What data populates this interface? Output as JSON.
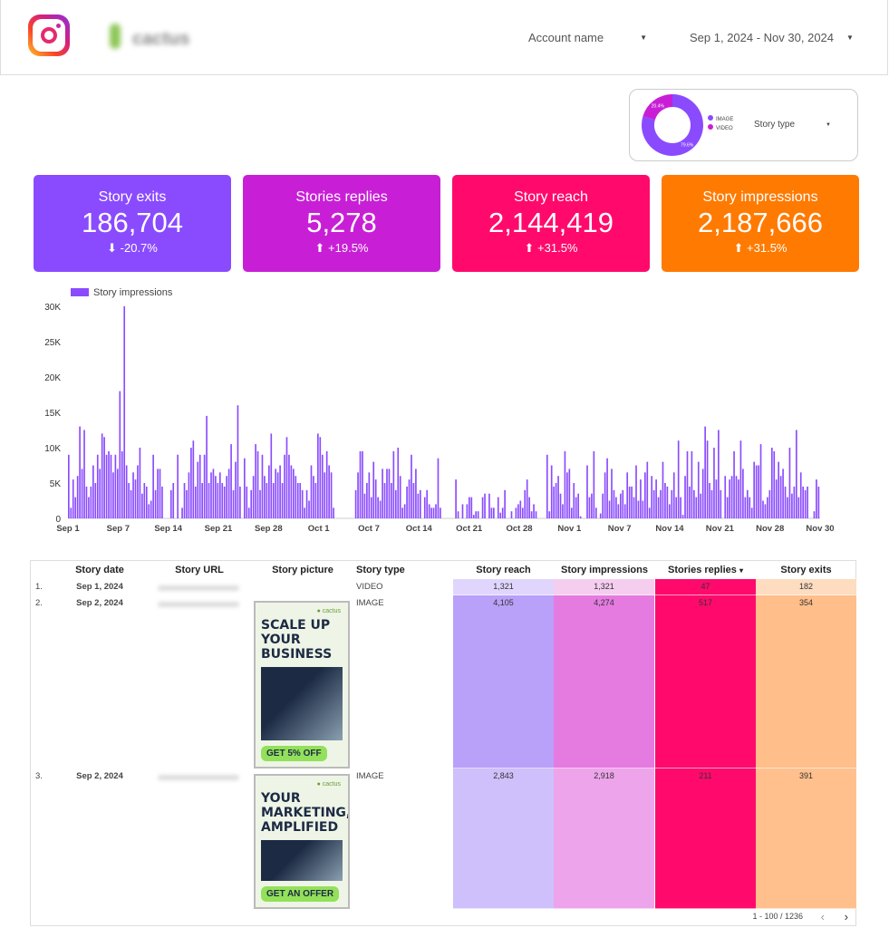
{
  "header": {
    "brand": "cactus",
    "account_filter": "Account name",
    "date_range": "Sep 1, 2024 - Nov 30, 2024"
  },
  "story_type_filter": {
    "label": "Story type",
    "donut": [
      {
        "name": "IMAGE",
        "pct": 79.6,
        "label": "79.6%",
        "color": "#8a4bff"
      },
      {
        "name": "VIDEO",
        "pct": 20.4,
        "label": "20.4%",
        "color": "#c81fd6"
      }
    ]
  },
  "kpis": [
    {
      "title": "Story exits",
      "value": "186,704",
      "delta": "-20.7%",
      "dir": "down",
      "color": "#8a4bff"
    },
    {
      "title": "Stories replies",
      "value": "5,278",
      "delta": "+19.5%",
      "dir": "up",
      "color": "#c81fd6"
    },
    {
      "title": "Story reach",
      "value": "2,144,419",
      "delta": "+31.5%",
      "dir": "up",
      "color": "#ff0a6c"
    },
    {
      "title": "Story impressions",
      "value": "2,187,666",
      "delta": "+31.5%",
      "dir": "up",
      "color": "#ff7a00"
    }
  ],
  "chart_data": {
    "type": "bar",
    "series": [
      {
        "name": "Story impressions",
        "color": "#8a4bff",
        "values": [
          9,
          1.5,
          5.5,
          3,
          6,
          13,
          7,
          12.5,
          4.5,
          3,
          4.5,
          7.5,
          5,
          9,
          7,
          12,
          11.5,
          9,
          9.5,
          9,
          6.5,
          9,
          7,
          18,
          9.5,
          30,
          7.5,
          5,
          4,
          6.5,
          5.5,
          7.5,
          10,
          3.5,
          5,
          4.5,
          2,
          2.5,
          9,
          4,
          7,
          7,
          4.5,
          0,
          0,
          0,
          4,
          5,
          0,
          9,
          0,
          1.5,
          5,
          4,
          6.5,
          10,
          11,
          4.5,
          8,
          9,
          5,
          9,
          14.5,
          5,
          6.5,
          7,
          6,
          5,
          6.5,
          5,
          4.5,
          6,
          7,
          10.5,
          4,
          8,
          16,
          4.5,
          0,
          8.5,
          4.5,
          1.5,
          4,
          6,
          10.5,
          9.5,
          4,
          9,
          6,
          5,
          7.5,
          12,
          5,
          7,
          6.5,
          7.5,
          5,
          9,
          11.5,
          9,
          7.5,
          7,
          6,
          5,
          5,
          4,
          1.5,
          4,
          2.5,
          7.5,
          6,
          5,
          12,
          11.5,
          9,
          6.5,
          9.5,
          7.5,
          6.5,
          1.5,
          0,
          0,
          0,
          0,
          0,
          0,
          0,
          0,
          0,
          4,
          6.5,
          9.5,
          9.5,
          3.5,
          5,
          6.5,
          3,
          8,
          5.5,
          3,
          2.5,
          7,
          5,
          7,
          7,
          5,
          9.5,
          4,
          10,
          6,
          1.5,
          2,
          4.5,
          5.5,
          9,
          5,
          7,
          3.5,
          4,
          0,
          3,
          4,
          2,
          1.5,
          1.5,
          2,
          8.5,
          1.5,
          0,
          0,
          0,
          0,
          0,
          0,
          5.5,
          1,
          0,
          2,
          0,
          2,
          3,
          3,
          0.5,
          1,
          1,
          0,
          3,
          3.5,
          0,
          3.5,
          1.5,
          1.5,
          0,
          3,
          0.8,
          1.5,
          4,
          0,
          0,
          1,
          0,
          1.5,
          2,
          2.5,
          1.5,
          4,
          5.5,
          3,
          1,
          2,
          1,
          0,
          0,
          0,
          0,
          9,
          1,
          7.5,
          4.5,
          5,
          6,
          3.5,
          2,
          9.5,
          6.5,
          7,
          1.5,
          5,
          3,
          3.5,
          0.3,
          0,
          0,
          7.5,
          3,
          3.5,
          9.5,
          1.5,
          0,
          0.7,
          3.5,
          6.5,
          8.5,
          2.5,
          7,
          4,
          3,
          2,
          3.5,
          4,
          2,
          6.5,
          4.5,
          4.5,
          3,
          7.5,
          2.5,
          5.5,
          2.5,
          6.5,
          8,
          1.5,
          6,
          4,
          5.5,
          3,
          4,
          8,
          5,
          4.5,
          2,
          4,
          6.5,
          3,
          11,
          3,
          0.5,
          6,
          9.5,
          4.5,
          9.5,
          4,
          3,
          8,
          3.5,
          7,
          13,
          11,
          5,
          4,
          10,
          5.5,
          12.5,
          4,
          0,
          6,
          3,
          5.5,
          6,
          9.5,
          6,
          5.5,
          11,
          7,
          3,
          4,
          3,
          1.5,
          8,
          7.5,
          7.5,
          10.5,
          2.5,
          2,
          3,
          4,
          10,
          9.5,
          5.5,
          8,
          6,
          7,
          4.5,
          3,
          10,
          3.5,
          4.5,
          12.5,
          3,
          6.5,
          4.5,
          4,
          4.5,
          0,
          0,
          1,
          5.5,
          4.5
        ]
      }
    ],
    "x_tick_labels": [
      "Sep 1",
      "Sep 7",
      "Sep 14",
      "Sep 21",
      "Sep 28",
      "Oct 1",
      "Oct 7",
      "Oct 14",
      "Oct 21",
      "Oct 28",
      "Nov 1",
      "Nov 7",
      "Nov 14",
      "Nov 21",
      "Nov 28",
      "Nov 30"
    ],
    "y_ticks": [
      0,
      5,
      10,
      15,
      20,
      25,
      30
    ],
    "y_tick_labels": [
      "0",
      "5K",
      "10K",
      "15K",
      "20K",
      "25K",
      "30K"
    ],
    "ylim": [
      0,
      30
    ],
    "legend": "top-left",
    "grid": false
  },
  "table": {
    "columns": [
      "Story date",
      "Story URL",
      "Story picture",
      "Story type",
      "Story reach",
      "Story impressions",
      "Stories replies",
      "Story exits"
    ],
    "sort_indicator": "▾",
    "rows": [
      {
        "index": "1.",
        "date": "Sep 1, 2024",
        "type": "VIDEO",
        "reach": "1,321",
        "impressions": "1,321",
        "replies": "47",
        "exits": "182"
      },
      {
        "index": "2.",
        "date": "Sep 2, 2024",
        "type": "IMAGE",
        "reach": "4,105",
        "impressions": "4,274",
        "replies": "517",
        "exits": "354",
        "picture": {
          "headline": "SCALE UP YOUR BUSINESS",
          "cta": "GET 5% OFF"
        }
      },
      {
        "index": "3.",
        "date": "Sep 2, 2024",
        "type": "IMAGE",
        "reach": "2,843",
        "impressions": "2,918",
        "replies": "211",
        "exits": "391",
        "picture": {
          "headline": "YOUR MARKETING, AMPLIFIED",
          "cta": "GET AN OFFER"
        }
      }
    ],
    "pagination": "1 - 100 / 1236"
  }
}
